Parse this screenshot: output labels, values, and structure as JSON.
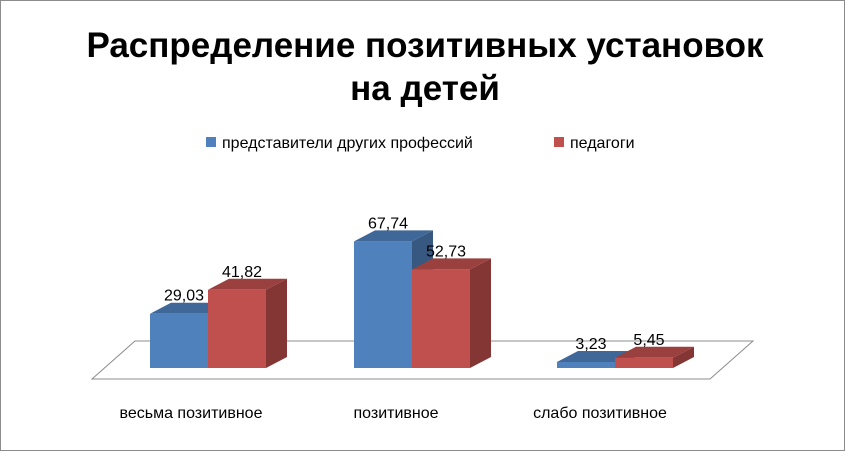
{
  "chart_data": {
    "type": "bar",
    "title_lines": [
      "Распределение позитивных установок",
      "на детей"
    ],
    "categories": [
      "весьма позитивное",
      "позитивное",
      "слабо позитивное"
    ],
    "series": [
      {
        "name": "представители других профессий",
        "values": [
          29.03,
          67.74,
          3.23
        ],
        "labels": [
          "29,03",
          "67,74",
          "3,23"
        ],
        "color": "#4f81bd"
      },
      {
        "name": "педагоги",
        "values": [
          41.82,
          52.73,
          5.45
        ],
        "labels": [
          "41,82",
          "52,73",
          "5,45"
        ],
        "color": "#c0504d"
      }
    ],
    "ylim": [
      0,
      80
    ],
    "legend_position": "top",
    "grid": false,
    "style": "3d-clustered-column"
  }
}
